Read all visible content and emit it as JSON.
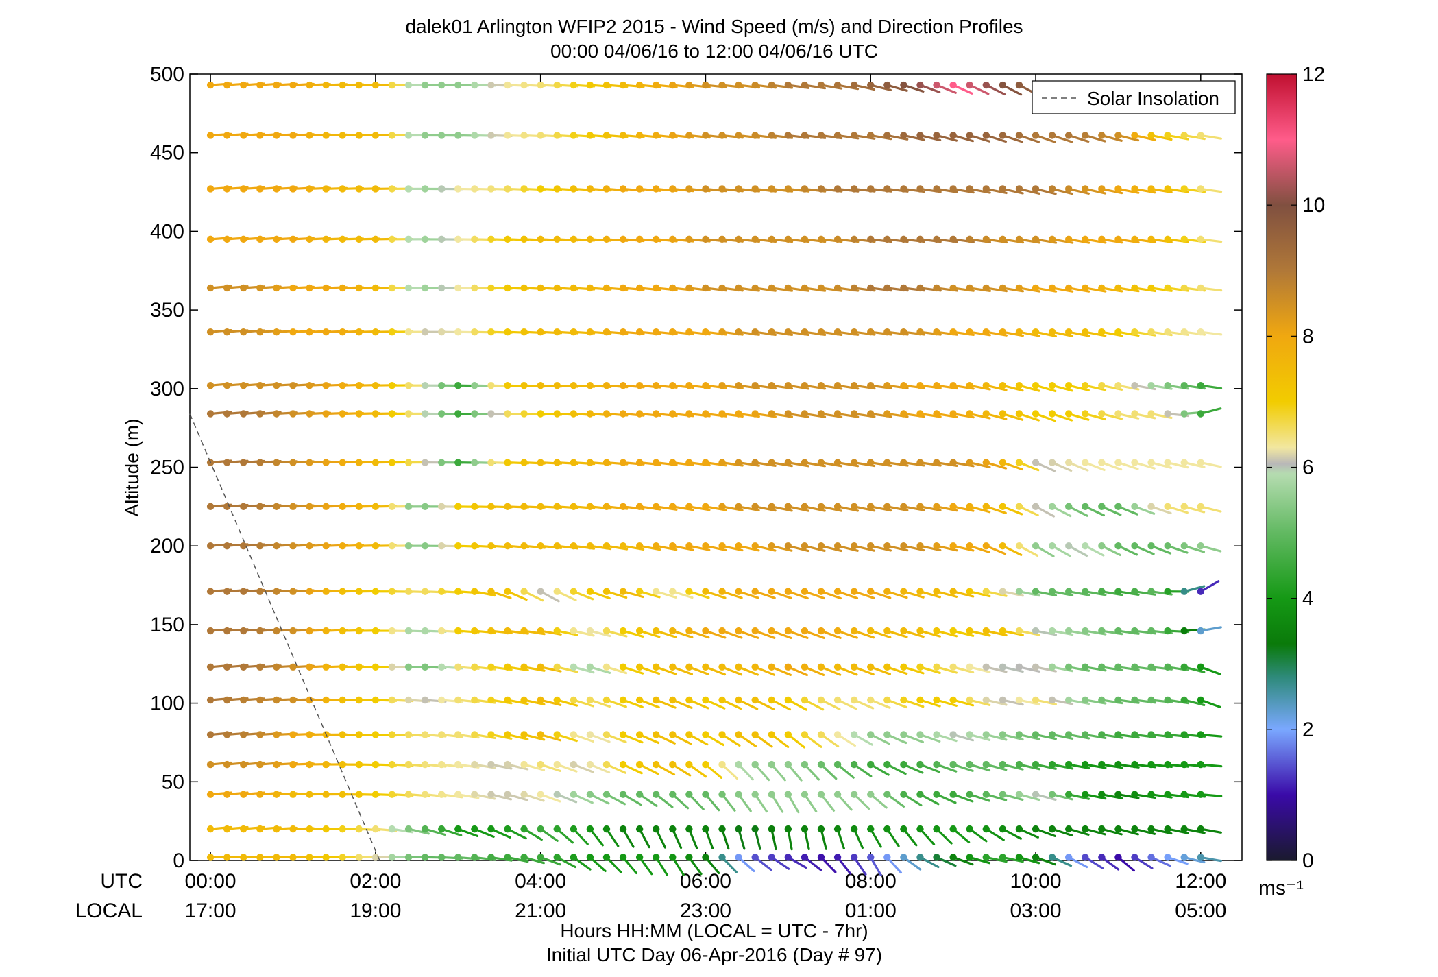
{
  "chart_data": {
    "type": "wind-barb-profile",
    "title": "dalek01 Arlington WFIP2 2015 - Wind Speed (m/s) and Direction Profiles",
    "subtitle": "00:00 04/06/16 to 12:00 04/06/16  UTC",
    "ylabel": "Altitude (m)",
    "ylim": [
      0,
      500
    ],
    "yticks": [
      0,
      50,
      100,
      150,
      200,
      250,
      300,
      350,
      400,
      450,
      500
    ],
    "xlim_hours_utc": [
      -0.25,
      12.5
    ],
    "xticks": [
      {
        "hour": 0,
        "utc": "00:00",
        "local": "17:00"
      },
      {
        "hour": 2,
        "utc": "02:00",
        "local": "19:00"
      },
      {
        "hour": 4,
        "utc": "04:00",
        "local": "21:00"
      },
      {
        "hour": 6,
        "utc": "06:00",
        "local": "23:00"
      },
      {
        "hour": 8,
        "utc": "08:00",
        "local": "01:00"
      },
      {
        "hour": 10,
        "utc": "10:00",
        "local": "03:00"
      },
      {
        "hour": 12,
        "utc": "12:00",
        "local": "05:00"
      }
    ],
    "xrow_label_utc": "UTC",
    "xrow_label_local": "LOCAL",
    "xlabel": "Hours HH:MM  (LOCAL = UTC - 7hr)",
    "xlabel2": "Initial UTC Day 06-Apr-2016 (Day # 97)",
    "legend": {
      "entries": [
        "Solar Insolation"
      ],
      "placement": "top-right"
    },
    "solar_insolation_line": {
      "x_hours": [
        -0.25,
        2.05
      ],
      "y_altitude": [
        284,
        0
      ]
    },
    "colorbar": {
      "min": 0,
      "max": 12,
      "ticks": [
        0,
        2,
        4,
        6,
        8,
        10,
        12
      ],
      "unit_label": "ms⁻¹",
      "stops": [
        {
          "v": 0,
          "c": "#1a1a2e"
        },
        {
          "v": 1,
          "c": "#3a0aa8"
        },
        {
          "v": 2,
          "c": "#7aa8ff"
        },
        {
          "v": 2.8,
          "c": "#2e8a7a"
        },
        {
          "v": 3.3,
          "c": "#0a7a0a"
        },
        {
          "v": 4,
          "c": "#159915"
        },
        {
          "v": 5,
          "c": "#62b962"
        },
        {
          "v": 5.9,
          "c": "#b5dcb0"
        },
        {
          "v": 6.05,
          "c": "#b8b8b8"
        },
        {
          "v": 6.3,
          "c": "#f2e7a0"
        },
        {
          "v": 7,
          "c": "#f2cc00"
        },
        {
          "v": 8,
          "c": "#f0a810"
        },
        {
          "v": 9,
          "c": "#b07838"
        },
        {
          "v": 10,
          "c": "#805040"
        },
        {
          "v": 11,
          "c": "#ff5c8a"
        },
        {
          "v": 12,
          "c": "#c01030"
        }
      ]
    },
    "times_hours": [
      0,
      0.2,
      0.4,
      0.6,
      0.8,
      1,
      1.2,
      1.4,
      1.6,
      1.8,
      2,
      2.2,
      2.4,
      2.6,
      2.8,
      3,
      3.2,
      3.4,
      3.6,
      3.8,
      4,
      4.2,
      4.4,
      4.6,
      4.8,
      5,
      5.2,
      5.4,
      5.6,
      5.8,
      6,
      6.2,
      6.4,
      6.6,
      6.8,
      7,
      7.2,
      7.4,
      7.6,
      7.8,
      8,
      8.2,
      8.4,
      8.6,
      8.8,
      9,
      9.2,
      9.4,
      9.6,
      9.8,
      10,
      10.2,
      10.4,
      10.6,
      10.8,
      11,
      11.2,
      11.4,
      11.6,
      11.8,
      12
    ],
    "altitudes_m": [
      2,
      20,
      42,
      61,
      80,
      102,
      123,
      146,
      171,
      200,
      225,
      253,
      284,
      302,
      336,
      364,
      395,
      427,
      461,
      493
    ],
    "speed_keyframes_ms": [
      [
        7.5,
        7.5,
        7.5,
        7.0,
        6.2,
        5.0,
        5.0,
        4.5,
        4.5,
        4.0,
        4.0,
        4.0,
        3.5,
        1.5,
        1.2,
        1.0,
        1.5,
        2.5,
        3.5,
        4.5,
        3.5,
        1.5,
        1.0,
        1.8,
        2.5
      ],
      [
        7.5,
        7.5,
        7.5,
        7.0,
        6.5,
        5.0,
        4.0,
        4.0,
        4.5,
        4.0,
        3.5,
        3.5,
        3.5,
        3.2,
        3.5,
        3.5,
        3.8,
        3.8,
        4.0,
        3.8,
        3.5,
        3.5,
        3.5,
        3.5,
        3.5
      ],
      [
        8.0,
        8.0,
        7.5,
        7.5,
        7.0,
        6.5,
        6.3,
        6.1,
        6.3,
        5.5,
        5.0,
        5.0,
        5.0,
        5.5,
        5.5,
        5.5,
        5.5,
        4.5,
        4.5,
        5.0,
        6.0,
        4.0,
        3.5,
        4.0,
        4.0
      ],
      [
        8.5,
        8.5,
        8.0,
        7.5,
        7.0,
        6.5,
        6.3,
        6.1,
        6.5,
        6.1,
        7.0,
        7.5,
        7.0,
        5.5,
        5.5,
        5.0,
        4.5,
        4.5,
        5.0,
        5.0,
        4.5,
        4.0,
        3.8,
        4.0,
        4.0
      ],
      [
        9.0,
        8.8,
        8.0,
        7.5,
        7.0,
        6.5,
        6.5,
        7.0,
        7.5,
        6.1,
        7.0,
        7.5,
        7.0,
        7.5,
        7.0,
        6.5,
        5.5,
        5.5,
        6.0,
        5.5,
        5.0,
        5.0,
        4.5,
        4.5,
        4.0
      ],
      [
        9.0,
        8.8,
        8.5,
        7.5,
        7.0,
        6.0,
        6.5,
        7.0,
        7.5,
        6.5,
        7.0,
        7.5,
        7.0,
        7.5,
        7.0,
        6.5,
        6.5,
        7.0,
        7.0,
        6.0,
        6.5,
        5.5,
        5.0,
        5.0,
        4.0
      ],
      [
        9.0,
        9.0,
        8.5,
        7.5,
        7.0,
        5.0,
        6.5,
        7.0,
        7.5,
        5.5,
        7.0,
        7.5,
        7.5,
        7.5,
        8.0,
        7.5,
        7.5,
        7.0,
        6.5,
        6.0,
        6.1,
        5.0,
        5.0,
        5.0,
        4.0
      ],
      [
        9.0,
        9.0,
        8.5,
        7.5,
        7.0,
        5.5,
        7.0,
        7.5,
        7.5,
        6.1,
        7.0,
        7.5,
        8.0,
        8.0,
        8.0,
        8.0,
        7.5,
        7.5,
        7.0,
        7.5,
        6.0,
        5.5,
        5.0,
        5.0,
        2.3
      ],
      [
        9.0,
        9.0,
        8.5,
        7.5,
        7.0,
        6.5,
        7.0,
        7.5,
        6.1,
        7.0,
        7.5,
        6.1,
        7.5,
        8.0,
        8.0,
        8.0,
        8.0,
        7.5,
        7.5,
        6.5,
        5.0,
        5.0,
        4.5,
        5.0,
        1.2
      ],
      [
        9.0,
        9.0,
        8.5,
        8.0,
        7.5,
        5.0,
        7.0,
        7.5,
        7.5,
        7.5,
        7.5,
        8.0,
        8.0,
        8.0,
        8.5,
        8.5,
        8.5,
        8.5,
        8.0,
        8.0,
        5.5,
        6.1,
        5.0,
        5.0,
        5.5
      ],
      [
        9.0,
        9.0,
        8.5,
        8.0,
        7.5,
        5.0,
        7.0,
        7.5,
        7.5,
        7.5,
        8.0,
        8.0,
        8.0,
        8.5,
        8.5,
        8.5,
        8.5,
        8.5,
        8.0,
        7.5,
        6.1,
        5.0,
        5.0,
        6.5,
        6.5
      ],
      [
        9.0,
        9.0,
        8.5,
        8.0,
        7.5,
        6.5,
        4.5,
        7.0,
        7.5,
        7.5,
        8.0,
        8.0,
        8.0,
        8.5,
        8.5,
        8.5,
        8.5,
        8.5,
        8.5,
        8.0,
        6.1,
        6.3,
        6.3,
        6.3,
        6.3
      ],
      [
        9.0,
        9.0,
        8.5,
        8.0,
        7.5,
        6.3,
        4.5,
        6.5,
        7.0,
        7.5,
        8.0,
        8.0,
        8.0,
        8.0,
        8.5,
        8.5,
        8.5,
        8.0,
        8.0,
        7.5,
        7.0,
        7.0,
        6.5,
        6.5,
        4.5
      ],
      [
        8.5,
        8.5,
        8.5,
        8.0,
        7.5,
        6.3,
        4.5,
        7.0,
        7.5,
        7.5,
        8.0,
        8.0,
        8.0,
        8.5,
        8.5,
        8.5,
        8.5,
        8.0,
        8.0,
        7.5,
        7.0,
        7.0,
        6.5,
        5.5,
        4.5
      ],
      [
        8.5,
        8.5,
        8.0,
        8.0,
        7.5,
        6.1,
        6.3,
        7.0,
        7.5,
        7.5,
        8.0,
        8.0,
        8.0,
        8.5,
        8.5,
        8.5,
        8.5,
        8.5,
        8.0,
        8.0,
        7.5,
        7.5,
        7.0,
        6.5,
        6.3
      ],
      [
        8.5,
        8.5,
        8.0,
        8.0,
        7.5,
        5.5,
        6.3,
        7.0,
        7.5,
        7.5,
        8.0,
        8.0,
        8.5,
        8.5,
        8.5,
        8.5,
        9.0,
        9.0,
        8.5,
        8.5,
        8.0,
        8.0,
        7.5,
        7.0,
        6.5
      ],
      [
        8.0,
        8.0,
        8.0,
        7.5,
        7.5,
        5.5,
        6.3,
        7.0,
        7.5,
        7.5,
        8.0,
        8.0,
        8.5,
        8.5,
        8.5,
        8.5,
        9.0,
        9.0,
        9.0,
        8.5,
        8.5,
        8.0,
        8.0,
        7.5,
        6.5
      ],
      [
        8.0,
        8.0,
        8.0,
        7.5,
        7.5,
        5.5,
        6.3,
        6.5,
        7.0,
        7.5,
        8.0,
        8.0,
        8.5,
        8.5,
        8.5,
        9.0,
        9.0,
        9.0,
        9.0,
        9.0,
        9.0,
        8.5,
        8.0,
        7.5,
        6.5
      ],
      [
        8.0,
        8.0,
        8.0,
        7.5,
        7.5,
        5.5,
        5.5,
        6.3,
        6.5,
        7.0,
        7.5,
        8.0,
        8.5,
        8.5,
        9.0,
        9.0,
        9.0,
        9.5,
        9.5,
        9.5,
        9.0,
        9.0,
        8.5,
        7.0,
        6.5
      ],
      [
        8.0,
        8.0,
        8.0,
        7.5,
        7.5,
        5.5,
        5.5,
        6.3,
        6.5,
        7.0,
        7.5,
        8.0,
        8.5,
        8.5,
        9.0,
        9.0,
        9.5,
        10.0,
        11.0,
        10.0,
        9.5,
        9.5,
        9.0,
        8.5,
        8.0
      ]
    ],
    "direction_keyframes_deg": [
      [
        270,
        270,
        270,
        270,
        270,
        270,
        275,
        280,
        290,
        310,
        320,
        330,
        320,
        310,
        300,
        320,
        330,
        300,
        290,
        280,
        290,
        300,
        310,
        290,
        280
      ],
      [
        265,
        265,
        268,
        270,
        275,
        285,
        290,
        295,
        305,
        320,
        330,
        335,
        340,
        345,
        350,
        345,
        330,
        320,
        310,
        300,
        290,
        285,
        285,
        282,
        280
      ],
      [
        265,
        265,
        268,
        270,
        272,
        275,
        280,
        285,
        290,
        295,
        300,
        310,
        320,
        325,
        330,
        320,
        310,
        300,
        290,
        285,
        285,
        282,
        280,
        278,
        275
      ],
      [
        265,
        265,
        268,
        270,
        272,
        275,
        278,
        282,
        288,
        292,
        295,
        300,
        310,
        318,
        320,
        312,
        300,
        292,
        288,
        284,
        282,
        280,
        278,
        276,
        275
      ],
      [
        265,
        266,
        268,
        270,
        272,
        274,
        278,
        282,
        286,
        290,
        292,
        296,
        300,
        305,
        308,
        304,
        296,
        290,
        286,
        284,
        282,
        280,
        278,
        276,
        275
      ],
      [
        265,
        266,
        268,
        270,
        272,
        274,
        276,
        280,
        284,
        288,
        290,
        292,
        294,
        296,
        298,
        296,
        292,
        288,
        285,
        283,
        282,
        280,
        278,
        276,
        290
      ],
      [
        265,
        266,
        267,
        268,
        270,
        272,
        275,
        278,
        282,
        286,
        288,
        290,
        291,
        292,
        293,
        292,
        290,
        287,
        285,
        283,
        282,
        280,
        278,
        276,
        290
      ],
      [
        265,
        266,
        267,
        268,
        270,
        272,
        274,
        277,
        280,
        284,
        286,
        288,
        289,
        290,
        290,
        290,
        288,
        286,
        284,
        282,
        281,
        280,
        278,
        276,
        260
      ],
      [
        265,
        266,
        267,
        268,
        270,
        272,
        274,
        292,
        298,
        290,
        285,
        287,
        288,
        288,
        289,
        289,
        288,
        286,
        284,
        282,
        281,
        280,
        279,
        278,
        240
      ],
      [
        265,
        266,
        267,
        268,
        269,
        270,
        272,
        274,
        276,
        278,
        280,
        281,
        282,
        283,
        284,
        284,
        283,
        282,
        283,
        295,
        300,
        298,
        295,
        290,
        285
      ],
      [
        265,
        266,
        267,
        268,
        269,
        270,
        271,
        272,
        273,
        275,
        277,
        279,
        280,
        281,
        282,
        282,
        281,
        280,
        282,
        290,
        298,
        296,
        292,
        288,
        284
      ],
      [
        265,
        266,
        267,
        268,
        269,
        270,
        271,
        272,
        273,
        274,
        275,
        277,
        278,
        279,
        280,
        280,
        279,
        278,
        280,
        288,
        294,
        292,
        288,
        284,
        282
      ],
      [
        265,
        266,
        267,
        268,
        269,
        270,
        271,
        272,
        273,
        274,
        275,
        276,
        277,
        278,
        279,
        279,
        278,
        278,
        280,
        286,
        290,
        286,
        283,
        281,
        255
      ],
      [
        265,
        266,
        267,
        268,
        269,
        270,
        271,
        272,
        273,
        274,
        275,
        276,
        277,
        278,
        279,
        279,
        278,
        277,
        279,
        284,
        286,
        283,
        281,
        279,
        278
      ],
      [
        265,
        266,
        267,
        268,
        269,
        270,
        271,
        272,
        273,
        274,
        275,
        276,
        277,
        278,
        278,
        278,
        277,
        277,
        278,
        280,
        282,
        281,
        280,
        278,
        277
      ],
      [
        265,
        266,
        267,
        268,
        269,
        270,
        271,
        272,
        273,
        274,
        275,
        276,
        277,
        278,
        278,
        278,
        277,
        277,
        278,
        279,
        280,
        280,
        279,
        278,
        277
      ],
      [
        266,
        266,
        267,
        268,
        269,
        270,
        271,
        272,
        273,
        274,
        275,
        276,
        276,
        277,
        277,
        277,
        277,
        277,
        278,
        279,
        280,
        280,
        279,
        278,
        277
      ],
      [
        266,
        266,
        267,
        268,
        269,
        270,
        271,
        272,
        273,
        274,
        275,
        276,
        276,
        277,
        277,
        277,
        277,
        278,
        280,
        282,
        284,
        283,
        281,
        279,
        278
      ],
      [
        266,
        266,
        267,
        268,
        269,
        270,
        271,
        272,
        273,
        274,
        275,
        276,
        276,
        277,
        277,
        278,
        280,
        283,
        286,
        288,
        289,
        287,
        284,
        281,
        279
      ],
      [
        266,
        266,
        267,
        268,
        269,
        270,
        271,
        272,
        273,
        274,
        275,
        276,
        276,
        277,
        278,
        280,
        284,
        289,
        294,
        297,
        298,
        296,
        292,
        288,
        284
      ]
    ]
  }
}
